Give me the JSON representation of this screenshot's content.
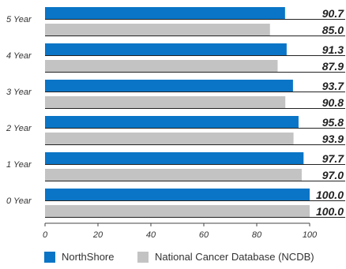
{
  "chart_data": {
    "type": "bar",
    "orientation": "horizontal",
    "categories": [
      "5 Year",
      "4 Year",
      "3 Year",
      "2 Year",
      "1 Year",
      "0 Year"
    ],
    "series": [
      {
        "name": "NorthShore",
        "values": [
          90.7,
          91.3,
          93.7,
          95.8,
          97.7,
          100.0
        ],
        "labels": [
          "90.7",
          "91.3",
          "93.7",
          "95.8",
          "97.7",
          "100.0"
        ],
        "color": "#0a75c6"
      },
      {
        "name": "National Cancer Database (NCDB)",
        "values": [
          85.0,
          87.9,
          90.8,
          93.9,
          97.0,
          100.0
        ],
        "labels": [
          "85.0",
          "87.9",
          "90.8",
          "93.9",
          "97.0",
          "100.0"
        ],
        "color": "#c3c3c3"
      }
    ],
    "xlim": [
      0,
      100
    ],
    "xticks": [
      "0",
      "20",
      "40",
      "60",
      "80",
      "100"
    ],
    "grid": false,
    "legend_position": "bottom"
  }
}
